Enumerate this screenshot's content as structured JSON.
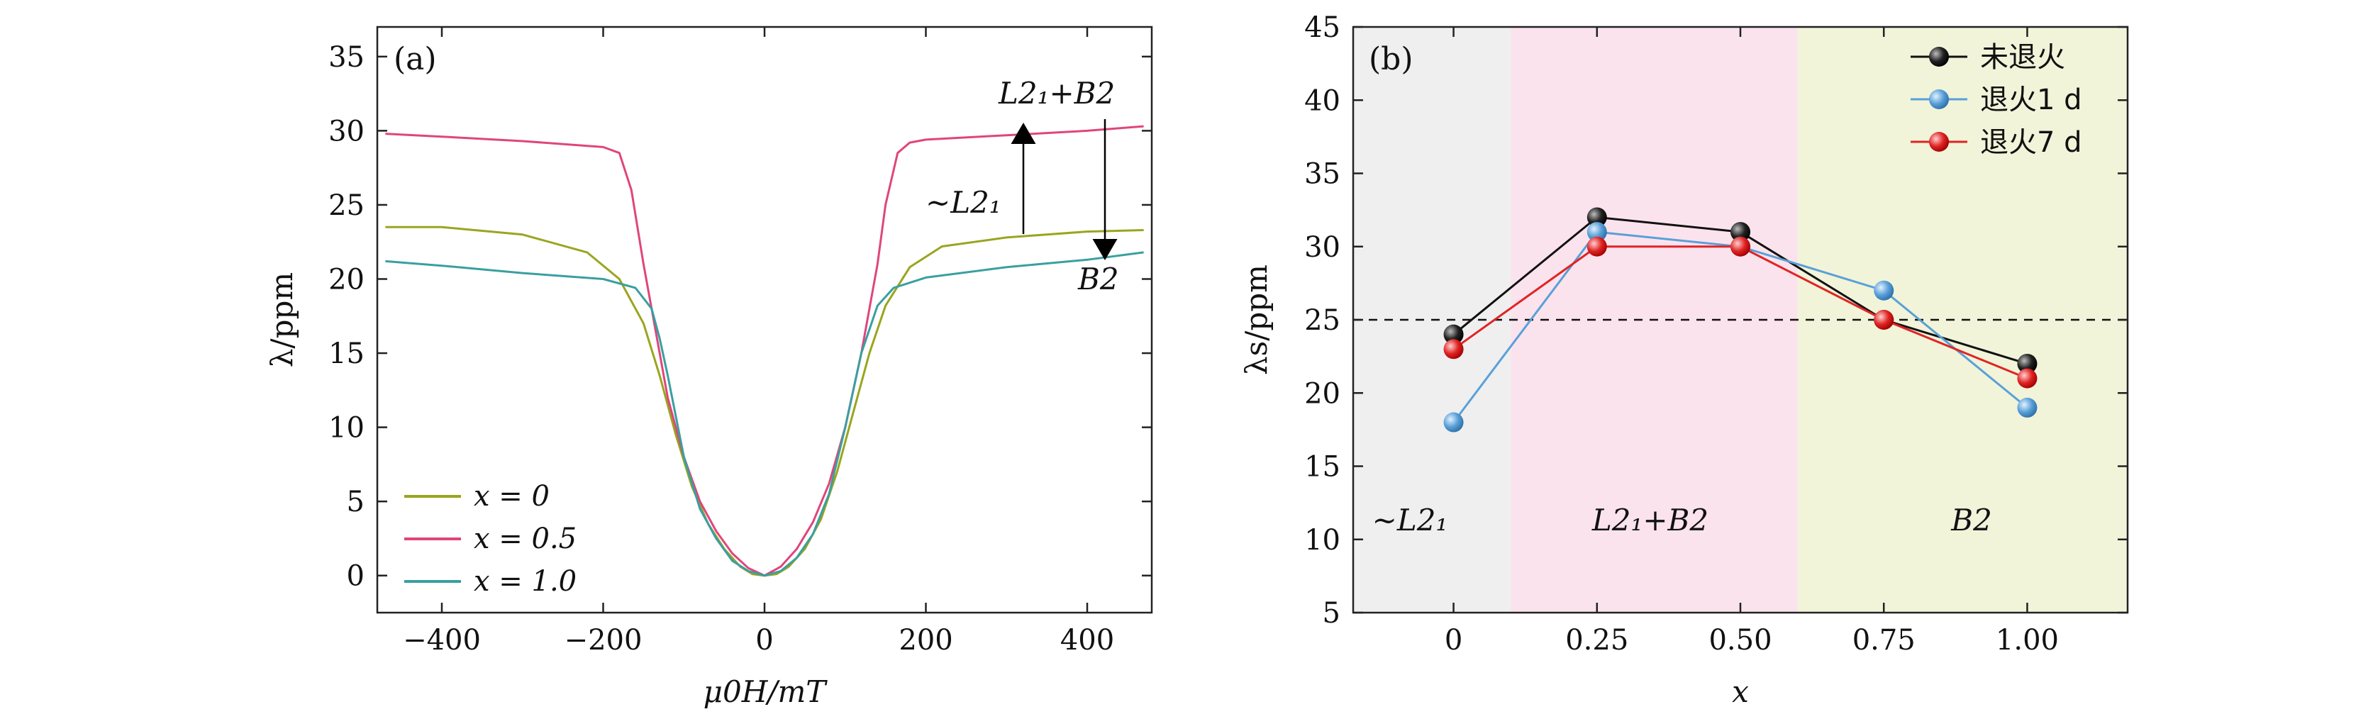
{
  "chart_data": [
    {
      "panel": "(a)",
      "type": "line",
      "xlabel": "μ0H/mT",
      "ylabel": "λ/ppm",
      "xlim": [
        -480,
        480
      ],
      "ylim": [
        -2.5,
        37
      ],
      "xticks": [
        -400,
        -200,
        0,
        200,
        400
      ],
      "xtick_labels": [
        "−400",
        "−200",
        "0",
        "200",
        "400"
      ],
      "yticks": [
        0,
        5,
        10,
        15,
        20,
        25,
        30,
        35
      ],
      "ytick_labels": [
        "0",
        "5",
        "10",
        "15",
        "20",
        "25",
        "30",
        "35"
      ],
      "legend_position": "bottom-left",
      "series": [
        {
          "name": "x = 0",
          "color": "#9aa51f",
          "x": [
            -470,
            -400,
            -300,
            -220,
            -180,
            -150,
            -130,
            -110,
            -90,
            -70,
            -50,
            -30,
            -15,
            0,
            15,
            30,
            50,
            70,
            90,
            110,
            130,
            150,
            180,
            220,
            300,
            400,
            470
          ],
          "y": [
            23.5,
            23.5,
            23,
            21.8,
            20,
            17,
            13.5,
            9.5,
            6,
            3.5,
            1.8,
            0.6,
            0.1,
            0,
            0.1,
            0.6,
            1.8,
            3.8,
            7,
            11,
            15,
            18.2,
            20.8,
            22.2,
            22.8,
            23.2,
            23.3
          ]
        },
        {
          "name": "x = 0.5",
          "color": "#e0457b",
          "x": [
            -470,
            -400,
            -300,
            -200,
            -180,
            -165,
            -150,
            -140,
            -120,
            -100,
            -80,
            -60,
            -40,
            -20,
            0,
            20,
            40,
            60,
            80,
            100,
            120,
            140,
            150,
            165,
            180,
            200,
            300,
            400,
            470
          ],
          "y": [
            29.8,
            29.6,
            29.3,
            28.9,
            28.5,
            26,
            21,
            18,
            12,
            8,
            5,
            3,
            1.5,
            0.5,
            0,
            0.6,
            1.8,
            3.6,
            6.2,
            10,
            15,
            21,
            25,
            28.5,
            29.2,
            29.4,
            29.7,
            30,
            30.3
          ]
        },
        {
          "name": "x = 1.0",
          "color": "#3a9fa0",
          "x": [
            -470,
            -400,
            -300,
            -200,
            -160,
            -140,
            -130,
            -120,
            -100,
            -80,
            -60,
            -40,
            -20,
            0,
            20,
            40,
            60,
            80,
            100,
            120,
            140,
            160,
            200,
            300,
            400,
            470
          ],
          "y": [
            21.2,
            20.9,
            20.4,
            20,
            19.4,
            18,
            16,
            13.5,
            8,
            4.5,
            2.5,
            1,
            0.3,
            0,
            0.3,
            1.2,
            2.8,
            5.5,
            10,
            15,
            18.2,
            19.4,
            20.1,
            20.8,
            21.3,
            21.8
          ]
        }
      ],
      "annotations": [
        "L2₁+B2",
        "~L2₁",
        "B2"
      ]
    },
    {
      "panel": "(b)",
      "type": "line",
      "xlabel": "x",
      "ylabel": "λs/ppm",
      "xlim": [
        -0.175,
        1.175
      ],
      "ylim": [
        5,
        45
      ],
      "categories": [
        0,
        0.25,
        0.5,
        0.75,
        1.0
      ],
      "xtick_labels": [
        "0",
        "0.25",
        "0.50",
        "0.75",
        "1.00"
      ],
      "yticks": [
        5,
        10,
        15,
        20,
        25,
        30,
        35,
        40,
        45
      ],
      "ytick_labels": [
        "5",
        "10",
        "15",
        "20",
        "25",
        "30",
        "35",
        "40",
        "45"
      ],
      "reference_line": 25,
      "legend_position": "top-right",
      "regions": [
        {
          "label": "~L2₁",
          "x_start": -0.175,
          "x_end": 0.1,
          "color": "#efefef"
        },
        {
          "label": "L2₁+B2",
          "x_start": 0.1,
          "x_end": 0.6,
          "color": "#fbe3ee"
        },
        {
          "label": "B2",
          "x_start": 0.6,
          "x_end": 1.175,
          "color": "#f1f4d9"
        }
      ],
      "series": [
        {
          "name": "未退火",
          "color": "#111111",
          "values": [
            24,
            32,
            31,
            25,
            22
          ]
        },
        {
          "name": "退火1 d",
          "color": "#5aa0d8",
          "values": [
            18,
            31,
            30,
            27,
            19
          ]
        },
        {
          "name": "退火7 d",
          "color": "#e02424",
          "values": [
            23,
            30,
            30,
            25,
            21
          ]
        }
      ]
    }
  ]
}
